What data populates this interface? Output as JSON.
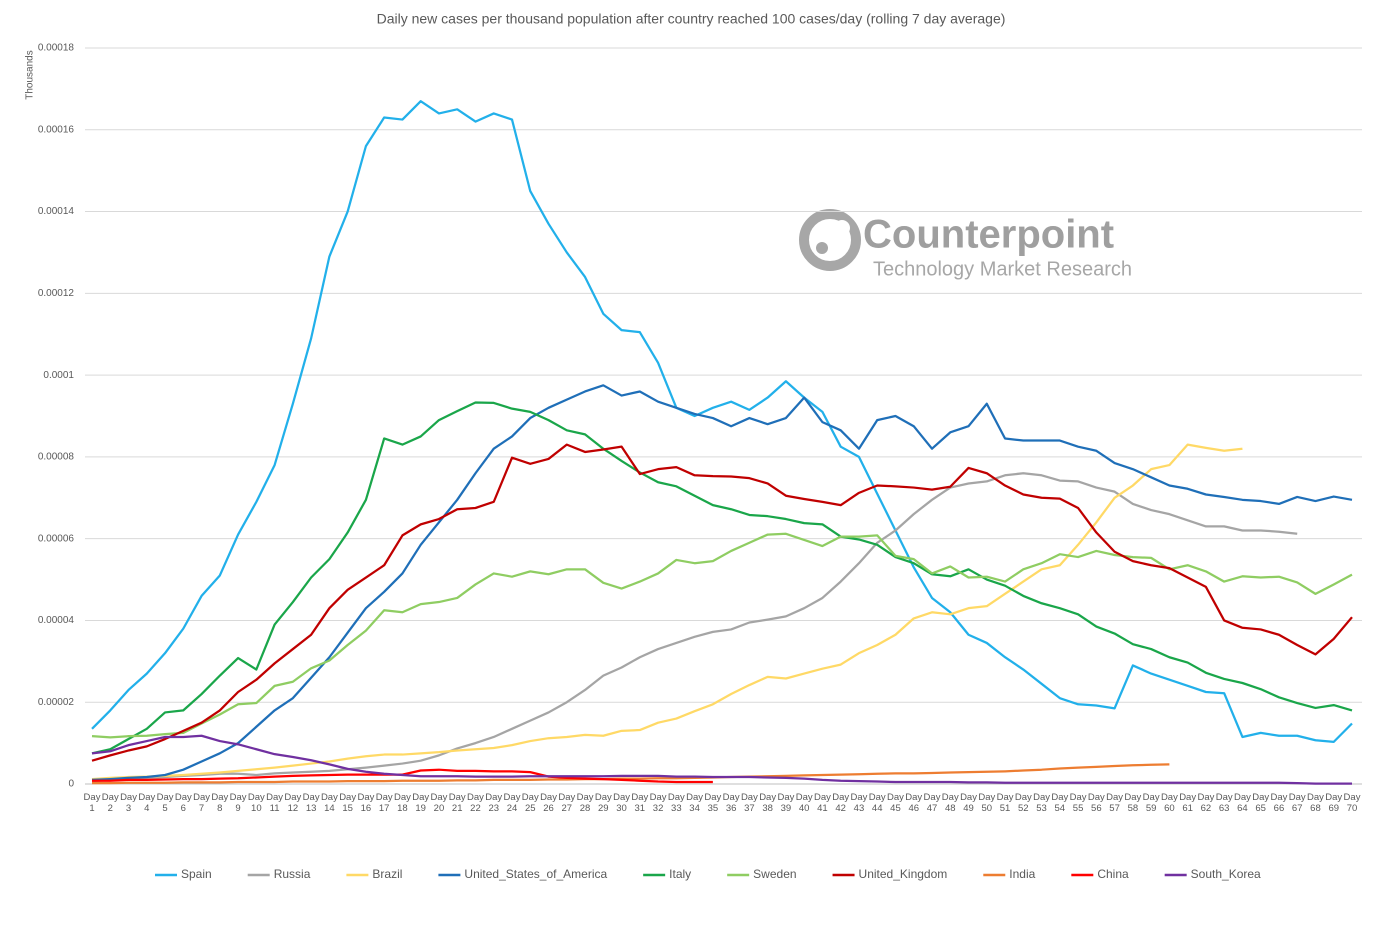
{
  "chart_data": {
    "type": "line",
    "title": "Daily new cases per thousand population after country reached 100 cases/day (rolling 7 day average)",
    "y_label": "Thousands",
    "watermark": {
      "brand": "Counterpoint",
      "tagline": "Technology Market Research"
    },
    "ylim": [
      0,
      0.00018
    ],
    "yticks": [
      0,
      2e-05,
      4e-05,
      6e-05,
      8e-05,
      0.0001,
      0.00012,
      0.00014,
      0.00016,
      0.00018
    ],
    "grid": true,
    "legend": "bottom",
    "categories": [
      "Day 1",
      "Day 2",
      "Day 3",
      "Day 4",
      "Day 5",
      "Day 6",
      "Day 7",
      "Day 8",
      "Day 9",
      "Day 10",
      "Day 11",
      "Day 12",
      "Day 13",
      "Day 14",
      "Day 15",
      "Day 16",
      "Day 17",
      "Day 18",
      "Day 19",
      "Day 20",
      "Day 21",
      "Day 22",
      "Day 23",
      "Day 24",
      "Day 25",
      "Day 26",
      "Day 27",
      "Day 28",
      "Day 29",
      "Day 30",
      "Day 31",
      "Day 32",
      "Day 33",
      "Day 34",
      "Day 35",
      "Day 36",
      "Day 37",
      "Day 38",
      "Day 39",
      "Day 40",
      "Day 41",
      "Day 42",
      "Day 43",
      "Day 44",
      "Day 45",
      "Day 46",
      "Day 47",
      "Day 48",
      "Day 49",
      "Day 50",
      "Day 51",
      "Day 52",
      "Day 53",
      "Day 54",
      "Day 55",
      "Day 56",
      "Day 57",
      "Day 58",
      "Day 59",
      "Day 60",
      "Day 61",
      "Day 62",
      "Day 63",
      "Day 64",
      "Day 65",
      "Day 66",
      "Day 67",
      "Day 68",
      "Day 69",
      "Day 70"
    ],
    "series": [
      {
        "name": "Spain",
        "color": "#22b0ea",
        "values": [
          1.35e-05,
          1.8e-05,
          2.3e-05,
          2.7e-05,
          3.2e-05,
          3.8e-05,
          4.6e-05,
          5.1e-05,
          6.1e-05,
          6.9e-05,
          7.8e-05,
          9.3e-05,
          0.000109,
          0.000129,
          0.00014,
          0.000156,
          0.000163,
          0.0001625,
          0.000167,
          0.000164,
          0.000165,
          0.000162,
          0.000164,
          0.0001625,
          0.000145,
          0.000137,
          0.00013,
          0.000124,
          0.000115,
          0.000111,
          0.0001105,
          0.000103,
          9.2e-05,
          9e-05,
          9.2e-05,
          9.35e-05,
          9.15e-05,
          9.45e-05,
          9.85e-05,
          9.45e-05,
          9.1e-05,
          8.25e-05,
          8e-05,
          7.1e-05,
          6.2e-05,
          5.3e-05,
          4.55e-05,
          4.2e-05,
          3.65e-05,
          3.45e-05,
          3.1e-05,
          2.8e-05,
          2.45e-05,
          2.1e-05,
          1.95e-05,
          1.92e-05,
          1.85e-05,
          2.9e-05,
          2.7e-05,
          2.55e-05,
          2.4e-05,
          2.25e-05,
          2.22e-05,
          1.15e-05,
          1.25e-05,
          1.18e-05,
          1.18e-05,
          1.07e-05,
          1.03e-05,
          1.48e-05
        ]
      },
      {
        "name": "Russia",
        "color": "#a5a5a5",
        "values": [
          7e-07,
          1e-06,
          1.3e-06,
          1.5e-06,
          1.7e-06,
          2e-06,
          2.2e-06,
          2.5e-06,
          2.5e-06,
          2.2e-06,
          2.6e-06,
          2.8e-06,
          3e-06,
          3.2e-06,
          3.6e-06,
          4e-06,
          4.5e-06,
          5e-06,
          5.7e-06,
          7e-06,
          8.7e-06,
          1e-05,
          1.15e-05,
          1.35e-05,
          1.55e-05,
          1.75e-05,
          2e-05,
          2.3e-05,
          2.65e-05,
          2.85e-05,
          3.1e-05,
          3.3e-05,
          3.45e-05,
          3.6e-05,
          3.72e-05,
          3.78e-05,
          3.95e-05,
          4.02e-05,
          4.1e-05,
          4.3e-05,
          4.55e-05,
          4.95e-05,
          5.4e-05,
          5.9e-05,
          6.2e-05,
          6.6e-05,
          6.95e-05,
          7.25e-05,
          7.35e-05,
          7.4e-05,
          7.55e-05,
          7.6e-05,
          7.55e-05,
          7.42e-05,
          7.4e-05,
          7.25e-05,
          7.15e-05,
          6.85e-05,
          6.7e-05,
          6.6e-05,
          6.45e-05,
          6.3e-05,
          6.3e-05,
          6.2e-05,
          6.2e-05,
          6.17e-05,
          6.12e-05,
          null,
          null,
          null
        ]
      },
      {
        "name": "Brazil",
        "color": "#ffd966",
        "values": [
          1.2e-06,
          1.5e-06,
          1.7e-06,
          1.8e-06,
          2e-06,
          2.2e-06,
          2.5e-06,
          2.8e-06,
          3.2e-06,
          3.6e-06,
          4e-06,
          4.5e-06,
          5e-06,
          5.5e-06,
          6.2e-06,
          6.8e-06,
          7.2e-06,
          7.2e-06,
          7.5e-06,
          7.8e-06,
          8.2e-06,
          8.5e-06,
          8.8e-06,
          9.5e-06,
          1.05e-05,
          1.12e-05,
          1.15e-05,
          1.2e-05,
          1.18e-05,
          1.3e-05,
          1.32e-05,
          1.5e-05,
          1.6e-05,
          1.78e-05,
          1.95e-05,
          2.2e-05,
          2.42e-05,
          2.62e-05,
          2.58e-05,
          2.7e-05,
          2.82e-05,
          2.92e-05,
          3.2e-05,
          3.4e-05,
          3.65e-05,
          4.05e-05,
          4.2e-05,
          4.15e-05,
          4.3e-05,
          4.35e-05,
          4.65e-05,
          4.95e-05,
          5.25e-05,
          5.35e-05,
          5.85e-05,
          6.4e-05,
          7e-05,
          7.3e-05,
          7.7e-05,
          7.8e-05,
          8.3e-05,
          8.22e-05,
          8.15e-05,
          8.2e-05,
          null,
          null,
          null,
          null,
          null,
          null
        ]
      },
      {
        "name": "United_States_of_America",
        "color": "#1f6fb8",
        "values": [
          1e-06,
          1.2e-06,
          1.5e-06,
          1.7e-06,
          2.2e-06,
          3.5e-06,
          5.5e-06,
          7.5e-06,
          1e-05,
          1.4e-05,
          1.8e-05,
          2.1e-05,
          2.6e-05,
          3.1e-05,
          3.7e-05,
          4.3e-05,
          4.7e-05,
          5.15e-05,
          5.85e-05,
          6.4e-05,
          6.95e-05,
          7.6e-05,
          8.2e-05,
          8.5e-05,
          8.95e-05,
          9.2e-05,
          9.4e-05,
          9.6e-05,
          9.75e-05,
          9.5e-05,
          9.6e-05,
          9.35e-05,
          9.2e-05,
          9.05e-05,
          8.95e-05,
          8.75e-05,
          8.95e-05,
          8.8e-05,
          8.95e-05,
          9.45e-05,
          8.85e-05,
          8.65e-05,
          8.2e-05,
          8.9e-05,
          9e-05,
          8.75e-05,
          8.2e-05,
          8.6e-05,
          8.75e-05,
          9.3e-05,
          8.45e-05,
          8.4e-05,
          8.4e-05,
          8.4e-05,
          8.25e-05,
          8.15e-05,
          7.85e-05,
          7.7e-05,
          7.5e-05,
          7.3e-05,
          7.22e-05,
          7.08e-05,
          7.02e-05,
          6.95e-05,
          6.92e-05,
          6.85e-05,
          7.02e-05,
          6.92e-05,
          7.03e-05,
          6.95e-05
        ]
      },
      {
        "name": "Italy",
        "color": "#1aa64a",
        "values": [
          7.5e-06,
          8.5e-06,
          1.1e-05,
          1.35e-05,
          1.75e-05,
          1.8e-05,
          2.2e-05,
          2.65e-05,
          3.08e-05,
          2.8e-05,
          3.9e-05,
          4.45e-05,
          5.05e-05,
          5.5e-05,
          6.15e-05,
          6.95e-05,
          8.45e-05,
          8.3e-05,
          8.5e-05,
          8.9e-05,
          9.12e-05,
          9.33e-05,
          9.32e-05,
          9.18e-05,
          9.1e-05,
          8.9e-05,
          8.65e-05,
          8.55e-05,
          8.2e-05,
          7.9e-05,
          7.62e-05,
          7.38e-05,
          7.28e-05,
          7.05e-05,
          6.82e-05,
          6.72e-05,
          6.58e-05,
          6.55e-05,
          6.48e-05,
          6.38e-05,
          6.35e-05,
          6.05e-05,
          5.98e-05,
          5.85e-05,
          5.55e-05,
          5.4e-05,
          5.13e-05,
          5.08e-05,
          5.25e-05,
          5e-05,
          4.85e-05,
          4.6e-05,
          4.42e-05,
          4.3e-05,
          4.15e-05,
          3.85e-05,
          3.68e-05,
          3.42e-05,
          3.3e-05,
          3.1e-05,
          2.97e-05,
          2.72e-05,
          2.57e-05,
          2.47e-05,
          2.32e-05,
          2.12e-05,
          1.98e-05,
          1.86e-05,
          1.93e-05,
          1.8e-05
        ]
      },
      {
        "name": "Sweden",
        "color": "#8fcd62",
        "values": [
          1.17e-05,
          1.14e-05,
          1.17e-05,
          1.18e-05,
          1.22e-05,
          1.25e-05,
          1.48e-05,
          1.7e-05,
          1.95e-05,
          1.98e-05,
          2.4e-05,
          2.5e-05,
          2.83e-05,
          3.02e-05,
          3.4e-05,
          3.75e-05,
          4.25e-05,
          4.2e-05,
          4.4e-05,
          4.45e-05,
          4.55e-05,
          4.88e-05,
          5.15e-05,
          5.07e-05,
          5.2e-05,
          5.13e-05,
          5.25e-05,
          5.25e-05,
          4.92e-05,
          4.78e-05,
          4.95e-05,
          5.15e-05,
          5.48e-05,
          5.4e-05,
          5.45e-05,
          5.7e-05,
          5.9e-05,
          6.1e-05,
          6.12e-05,
          5.97e-05,
          5.82e-05,
          6.05e-05,
          6.05e-05,
          6.08e-05,
          5.58e-05,
          5.5e-05,
          5.15e-05,
          5.32e-05,
          5.05e-05,
          5.07e-05,
          4.95e-05,
          5.25e-05,
          5.4e-05,
          5.62e-05,
          5.55e-05,
          5.7e-05,
          5.6e-05,
          5.55e-05,
          5.53e-05,
          5.25e-05,
          5.35e-05,
          5.2e-05,
          4.95e-05,
          5.08e-05,
          5.05e-05,
          5.07e-05,
          4.93e-05,
          4.65e-05,
          4.88e-05,
          5.12e-05
        ]
      },
      {
        "name": "United_Kingdom",
        "color": "#c00000",
        "values": [
          5.7e-06,
          7e-06,
          8.2e-06,
          9.2e-06,
          1.1e-05,
          1.3e-05,
          1.5e-05,
          1.8e-05,
          2.25e-05,
          2.55e-05,
          2.95e-05,
          3.3e-05,
          3.65e-05,
          4.3e-05,
          4.75e-05,
          5.05e-05,
          5.35e-05,
          6.08e-05,
          6.35e-05,
          6.48e-05,
          6.72e-05,
          6.75e-05,
          6.9e-05,
          7.98e-05,
          7.83e-05,
          7.95e-05,
          8.3e-05,
          8.12e-05,
          8.18e-05,
          8.25e-05,
          7.58e-05,
          7.7e-05,
          7.75e-05,
          7.55e-05,
          7.53e-05,
          7.52e-05,
          7.48e-05,
          7.35e-05,
          7.05e-05,
          6.97e-05,
          6.9e-05,
          6.82e-05,
          7.12e-05,
          7.3e-05,
          7.28e-05,
          7.25e-05,
          7.2e-05,
          7.27e-05,
          7.73e-05,
          7.6e-05,
          7.3e-05,
          7.08e-05,
          7e-05,
          6.98e-05,
          6.75e-05,
          6.15e-05,
          5.68e-05,
          5.45e-05,
          5.35e-05,
          5.28e-05,
          5.05e-05,
          4.82e-05,
          4e-05,
          3.82e-05,
          3.78e-05,
          3.65e-05,
          3.4e-05,
          3.17e-05,
          3.55e-05,
          4.08e-05
        ]
      },
      {
        "name": "India",
        "color": "#ed7d31",
        "values": [
          2e-07,
          2e-07,
          3e-07,
          3e-07,
          3e-07,
          4e-07,
          4e-07,
          4e-07,
          5e-07,
          5e-07,
          5e-07,
          6e-07,
          6e-07,
          6e-07,
          7e-07,
          7e-07,
          7e-07,
          8e-07,
          8e-07,
          8e-07,
          9e-07,
          9e-07,
          1e-06,
          1e-06,
          1e-06,
          1.1e-06,
          1.1e-06,
          1.2e-06,
          1.2e-06,
          1.3e-06,
          1.3e-06,
          1.4e-06,
          1.4e-06,
          1.5e-06,
          1.6e-06,
          1.7e-06,
          1.8e-06,
          1.9e-06,
          2e-06,
          2.1e-06,
          2.2e-06,
          2.3e-06,
          2.4e-06,
          2.5e-06,
          2.6e-06,
          2.6e-06,
          2.7e-06,
          2.8e-06,
          2.9e-06,
          3e-06,
          3.1e-06,
          3.3e-06,
          3.5e-06,
          3.8e-06,
          4e-06,
          4.2e-06,
          4.4e-06,
          4.6e-06,
          4.7e-06,
          4.8e-06,
          null,
          null,
          null,
          null,
          null,
          null,
          null,
          null,
          null,
          null
        ]
      },
      {
        "name": "China",
        "color": "#ff0000",
        "values": [
          8e-07,
          8e-07,
          1e-06,
          1e-06,
          1.1e-06,
          1.2e-06,
          1.2e-06,
          1.3e-06,
          1.4e-06,
          1.6e-06,
          1.8e-06,
          2e-06,
          2.1e-06,
          2.2e-06,
          2.3e-06,
          2.3e-06,
          2.3e-06,
          2.3e-06,
          3.3e-06,
          3.5e-06,
          3.2e-06,
          3.2e-06,
          3.1e-06,
          3.1e-06,
          2.9e-06,
          1.8e-06,
          1.5e-06,
          1.3e-06,
          1.2e-06,
          1e-06,
          8e-07,
          6e-07,
          5e-07,
          5e-07,
          5e-07,
          null,
          null,
          null,
          null,
          null,
          null,
          null,
          null,
          null,
          null,
          null,
          null,
          null,
          null,
          null,
          null,
          null,
          null,
          null,
          null,
          null,
          null,
          null,
          null,
          null,
          null,
          null,
          null,
          null,
          null,
          null,
          null,
          null,
          null,
          null
        ]
      },
      {
        "name": "South_Korea",
        "color": "#7030a0",
        "values": [
          7.5e-06,
          8e-06,
          9.5e-06,
          1.05e-05,
          1.15e-05,
          1.15e-05,
          1.18e-05,
          1.05e-05,
          9.7e-06,
          8.5e-06,
          7.3e-06,
          6.6e-06,
          5.8e-06,
          4.8e-06,
          3.7e-06,
          3e-06,
          2.5e-06,
          2.2e-06,
          1.9e-06,
          1.9e-06,
          1.9e-06,
          1.8e-06,
          1.8e-06,
          1.8e-06,
          1.9e-06,
          1.9e-06,
          1.9e-06,
          1.9e-06,
          1.9e-06,
          2e-06,
          2e-06,
          2e-06,
          1.8e-06,
          1.8e-06,
          1.7e-06,
          1.7e-06,
          1.7e-06,
          1.6e-06,
          1.5e-06,
          1.3e-06,
          1e-06,
          8e-07,
          7e-07,
          6e-07,
          5e-07,
          5e-07,
          5e-07,
          5e-07,
          4e-07,
          4e-07,
          3e-07,
          3e-07,
          3e-07,
          3e-07,
          3e-07,
          3e-07,
          3e-07,
          3e-07,
          3e-07,
          3e-07,
          3e-07,
          3e-07,
          3e-07,
          3e-07,
          3e-07,
          3e-07,
          2e-07,
          1e-07,
          1e-07,
          1e-07
        ]
      }
    ]
  }
}
